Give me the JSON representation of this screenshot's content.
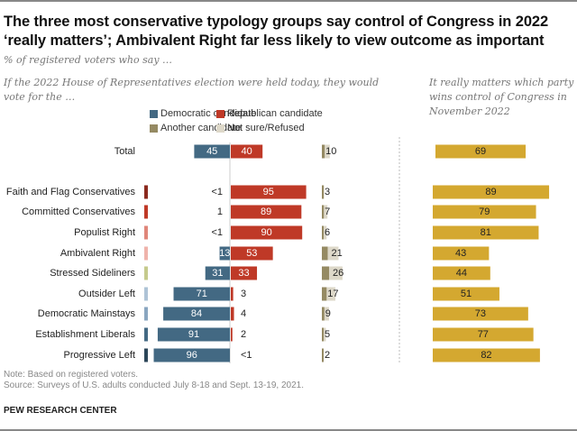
{
  "title": "The three most conservative typology groups say control of Congress in 2022 ‘really matters’; Ambivalent Right far less likely to view outcome as important",
  "subtitle": "% of registered voters who say …",
  "left_panel_subtitle": "If the 2022 House of Representatives election were held today, they would vote for the …",
  "right_panel_subtitle": "It really matters which party wins control of Congress in November 2022",
  "legend": [
    {
      "label": "Democratic candidate",
      "color": "#436983"
    },
    {
      "label": "Republican candidate",
      "color": "#bf3927"
    },
    {
      "label": "Another candidate",
      "color": "#958a63"
    },
    {
      "label": "Not sure/Refused",
      "color": "#ddd8c9"
    }
  ],
  "note": "Note: Based on registered voters.",
  "source": "Source: Surveys of U.S. adults conducted July 8-18 and Sept. 13-19, 2021.",
  "brand": "PEW RESEARCH CENTER",
  "chart_data": [
    {
      "type": "bar",
      "title": "If the 2022 House of Representatives election were held today, they would vote for the …",
      "orientation": "horizontal-diverging",
      "categories": [
        "Total",
        "Faith and Flag Conservatives",
        "Committed Conservatives",
        "Populist Right",
        "Ambivalent Right",
        "Stressed Sideliners",
        "Outsider Left",
        "Democratic Mainstays",
        "Establishment Liberals",
        "Progressive Left"
      ],
      "group_colors": [
        null,
        "#8b2a1e",
        "#bf3927",
        "#e0867a",
        "#efb3ab",
        "#c5ca8c",
        "#aec3d6",
        "#8aa6c0",
        "#436983",
        "#2c4659"
      ],
      "series": [
        {
          "name": "Democratic candidate",
          "color": "#436983",
          "values": [
            45,
            0.4,
            1,
            0.4,
            13,
            31,
            71,
            84,
            91,
            96
          ],
          "labels": [
            "45",
            "<1",
            "1",
            "<1",
            "13",
            "31",
            "71",
            "84",
            "91",
            "96"
          ]
        },
        {
          "name": "Republican candidate",
          "color": "#bf3927",
          "values": [
            40,
            95,
            89,
            90,
            53,
            33,
            3,
            4,
            2,
            0.4
          ],
          "labels": [
            "40",
            "95",
            "89",
            "90",
            "53",
            "33",
            "3",
            "4",
            "2",
            "<1"
          ]
        },
        {
          "name": "Another/Not sure combined",
          "color": "#ddd8c9",
          "values": [
            10,
            3,
            7,
            6,
            21,
            26,
            17,
            9,
            5,
            2
          ],
          "labels": [
            "10",
            "3",
            "7",
            "6",
            "21",
            "26",
            "17",
            "9",
            "5",
            "2"
          ]
        }
      ],
      "xlabel": "",
      "ylabel": "",
      "xlim": [
        0,
        100
      ]
    },
    {
      "type": "bar",
      "title": "It really matters which party wins control of Congress in November 2022",
      "orientation": "horizontal",
      "categories": [
        "Total",
        "Faith and Flag Conservatives",
        "Committed Conservatives",
        "Populist Right",
        "Ambivalent Right",
        "Stressed Sideliners",
        "Outsider Left",
        "Democratic Mainstays",
        "Establishment Liberals",
        "Progressive Left"
      ],
      "color": "#d4a830",
      "values": [
        69,
        89,
        79,
        81,
        43,
        44,
        51,
        73,
        77,
        82
      ],
      "xlim": [
        0,
        100
      ]
    }
  ]
}
